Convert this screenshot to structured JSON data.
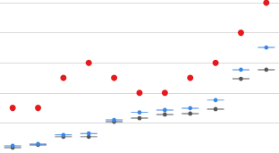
{
  "chart_data": {
    "type": "scatter",
    "categories": [
      null,
      null,
      null,
      null,
      null,
      null,
      null,
      null,
      null,
      null,
      null
    ],
    "series": [
      {
        "color": "#e41a1c",
        "marker": "circle",
        "values": [
          1.5,
          1.5,
          2.5,
          3,
          2.5,
          2,
          2,
          2.5,
          3,
          4,
          5
        ]
      },
      {
        "color": "#3a86e8",
        "marker": "circle-bar",
        "values": [
          0.24,
          0.3,
          0.6,
          0.65,
          1.1,
          1.35,
          1.43,
          1.49,
          1.76,
          2.77,
          3.51
        ]
      },
      {
        "color": "#555555",
        "marker": "circle-bar",
        "values": [
          0.18,
          0.27,
          0.54,
          0.54,
          1.04,
          1.16,
          1.28,
          1.31,
          1.46,
          2.47,
          2.77
        ]
      }
    ],
    "ylim": [
      0,
      5
    ],
    "yticks": [
      0,
      1,
      2,
      3,
      4,
      5
    ],
    "grid": true,
    "tick_labels": false
  }
}
